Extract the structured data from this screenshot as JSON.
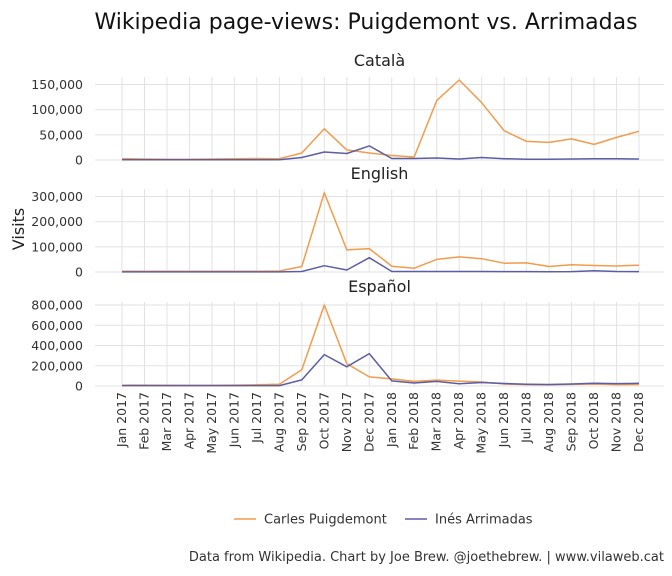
{
  "chart_data": {
    "type": "line",
    "title": "Wikipedia page-views: Puigdemont vs. Arrimadas",
    "ylabel": "Visits",
    "xlabel": "",
    "caption": "Data from Wikipedia. Chart by Joe Brew. @joethebrew. | www.vilaweb.cat",
    "legend_position": "bottom",
    "grid": true,
    "x": [
      "Jan 2017",
      "Feb 2017",
      "Mar 2017",
      "Apr 2017",
      "May 2017",
      "Jun 2017",
      "Jul 2017",
      "Aug 2017",
      "Sep 2017",
      "Oct 2017",
      "Nov 2017",
      "Dec 2017",
      "Jan 2018",
      "Feb 2018",
      "Mar 2018",
      "Apr 2018",
      "May 2018",
      "Jun 2018",
      "Jul 2018",
      "Aug 2018",
      "Sep 2018",
      "Oct 2018",
      "Nov 2018",
      "Dec 2018"
    ],
    "series_meta": [
      {
        "name": "Carles Puigdemont",
        "color": "#f29c4c"
      },
      {
        "name": "Inés Arrimadas",
        "color": "#5b5ea6"
      }
    ],
    "panels": [
      {
        "label": "Català",
        "ylim": [
          0,
          165000
        ],
        "yticks": [
          0,
          50000,
          100000,
          150000
        ],
        "yticklabels": [
          "0",
          "50,000",
          "100,000",
          "150,000"
        ],
        "series": [
          {
            "name": "Carles Puigdemont",
            "values": [
              2500,
              2000,
              1500,
              1500,
              2000,
              2500,
              3000,
              2500,
              14000,
              62000,
              20000,
              14000,
              9000,
              6000,
              118000,
              159000,
              114000,
              58000,
              37000,
              35000,
              42000,
              31000,
              45000,
              57000
            ]
          },
          {
            "name": "Inés Arrimadas",
            "values": [
              300,
              300,
              300,
              300,
              300,
              300,
              300,
              300,
              5000,
              16000,
              13000,
              28000,
              3000,
              3000,
              4000,
              2000,
              5000,
              2500,
              1500,
              1500,
              2000,
              2500,
              2500,
              2000
            ]
          }
        ]
      },
      {
        "label": "English",
        "ylim": [
          0,
          330000
        ],
        "yticks": [
          0,
          100000,
          200000,
          300000
        ],
        "yticklabels": [
          "0",
          "100,000",
          "200,000",
          "300,000"
        ],
        "series": [
          {
            "name": "Carles Puigdemont",
            "values": [
              3000,
              3000,
              3000,
              3000,
              3000,
              3000,
              3000,
              4000,
              22000,
              315000,
              88000,
              93000,
              23000,
              15000,
              50000,
              60000,
              53000,
              35000,
              36000,
              22000,
              29000,
              26000,
              24000,
              27000
            ]
          },
          {
            "name": "Inés Arrimadas",
            "values": [
              200,
              200,
              200,
              200,
              200,
              200,
              200,
              200,
              2000,
              25000,
              8000,
              57000,
              2000,
              2000,
              2000,
              2000,
              2000,
              1500,
              1500,
              1000,
              1500,
              5000,
              2000,
              1500
            ]
          }
        ]
      },
      {
        "label": "Español",
        "ylim": [
          0,
          830000
        ],
        "yticks": [
          0,
          200000,
          400000,
          600000,
          800000
        ],
        "yticklabels": [
          "0",
          "200,000",
          "400,000",
          "600,000",
          "800,000"
        ],
        "series": [
          {
            "name": "Carles Puigdemont",
            "values": [
              8000,
              9000,
              8000,
              8000,
              8000,
              9000,
              12000,
              18000,
              160000,
              800000,
              220000,
              90000,
              70000,
              45000,
              58000,
              48000,
              40000,
              20000,
              14000,
              12000,
              16000,
              20000,
              14000,
              15000
            ]
          },
          {
            "name": "Inés Arrimadas",
            "values": [
              4000,
              4000,
              4000,
              4000,
              4000,
              4000,
              4000,
              4000,
              60000,
              310000,
              190000,
              320000,
              50000,
              30000,
              45000,
              22000,
              35000,
              25000,
              18000,
              15000,
              20000,
              28000,
              24000,
              27000
            ]
          }
        ]
      }
    ]
  }
}
